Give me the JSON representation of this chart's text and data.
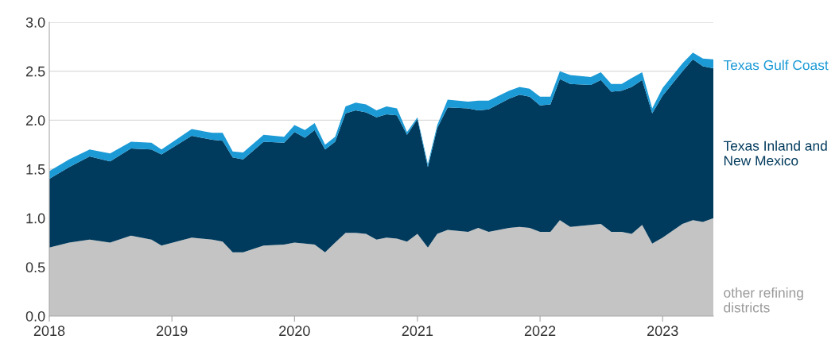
{
  "chart_data": {
    "type": "area",
    "stacked": true,
    "x": [
      "2018-01",
      "2018-03",
      "2018-05",
      "2018-07",
      "2018-09",
      "2018-11",
      "2018-12",
      "2019-03",
      "2019-05",
      "2019-06",
      "2019-07",
      "2019-08",
      "2019-10",
      "2019-12",
      "2020-01",
      "2020-02",
      "2020-03",
      "2020-04",
      "2020-05",
      "2020-06",
      "2020-07",
      "2020-08",
      "2020-09",
      "2020-10",
      "2020-11",
      "2020-12",
      "2021-01",
      "2021-02",
      "2021-03",
      "2021-04",
      "2021-06",
      "2021-07",
      "2021-08",
      "2021-10",
      "2021-11",
      "2021-12",
      "2022-01",
      "2022-02",
      "2022-03",
      "2022-04",
      "2022-06",
      "2022-07",
      "2022-08",
      "2022-09",
      "2022-10",
      "2022-11",
      "2022-12",
      "2023-01",
      "2023-03",
      "2023-04",
      "2023-05",
      "2023-06"
    ],
    "series": [
      {
        "name": "other refining districts",
        "color": "#c4c4c4",
        "values": [
          0.7,
          0.75,
          0.78,
          0.75,
          0.82,
          0.78,
          0.72,
          0.8,
          0.78,
          0.76,
          0.65,
          0.65,
          0.72,
          0.73,
          0.75,
          0.74,
          0.73,
          0.65,
          0.75,
          0.85,
          0.85,
          0.84,
          0.78,
          0.8,
          0.79,
          0.76,
          0.84,
          0.7,
          0.84,
          0.88,
          0.86,
          0.9,
          0.86,
          0.9,
          0.91,
          0.9,
          0.86,
          0.86,
          0.98,
          0.91,
          0.93,
          0.94,
          0.86,
          0.86,
          0.84,
          0.93,
          0.74,
          0.8,
          0.94,
          0.98,
          0.96,
          1.0
        ]
      },
      {
        "name": "Texas Inland and New Mexico",
        "color": "#003a5c",
        "values": [
          0.7,
          0.77,
          0.85,
          0.83,
          0.89,
          0.92,
          0.93,
          1.04,
          1.02,
          1.03,
          0.97,
          0.95,
          1.06,
          1.04,
          1.13,
          1.08,
          1.17,
          1.05,
          1.03,
          1.22,
          1.25,
          1.24,
          1.25,
          1.26,
          1.26,
          1.09,
          1.17,
          0.82,
          1.08,
          1.25,
          1.26,
          1.2,
          1.25,
          1.32,
          1.35,
          1.34,
          1.29,
          1.3,
          1.44,
          1.46,
          1.43,
          1.47,
          1.43,
          1.44,
          1.5,
          1.48,
          1.33,
          1.45,
          1.56,
          1.64,
          1.59,
          1.53
        ]
      },
      {
        "name": "Texas Gulf Coast",
        "color": "#1b9ad6",
        "values": [
          0.08,
          0.08,
          0.07,
          0.08,
          0.07,
          0.07,
          0.05,
          0.07,
          0.07,
          0.08,
          0.06,
          0.07,
          0.07,
          0.06,
          0.07,
          0.08,
          0.07,
          0.05,
          0.05,
          0.07,
          0.08,
          0.08,
          0.07,
          0.08,
          0.07,
          0.03,
          0.02,
          0.03,
          0.03,
          0.08,
          0.07,
          0.1,
          0.09,
          0.08,
          0.08,
          0.08,
          0.09,
          0.08,
          0.08,
          0.09,
          0.08,
          0.08,
          0.08,
          0.07,
          0.09,
          0.08,
          0.05,
          0.08,
          0.08,
          0.07,
          0.08,
          0.09
        ]
      }
    ],
    "xlim": [
      "2018-01",
      "2023-06"
    ],
    "xticks": [
      "2018",
      "2019",
      "2020",
      "2021",
      "2022",
      "2023"
    ],
    "ylim": [
      0,
      3
    ],
    "yticks": [
      {
        "value": 0,
        "label": "0.0"
      },
      {
        "value": 0.5,
        "label": "0.5"
      },
      {
        "value": 1,
        "label": "1.0"
      },
      {
        "value": 1.5,
        "label": "1.5"
      },
      {
        "value": 2,
        "label": "2.0"
      },
      {
        "value": 2.5,
        "label": "2.5"
      },
      {
        "value": 3,
        "label": "3.0"
      }
    ],
    "grid": "y"
  }
}
